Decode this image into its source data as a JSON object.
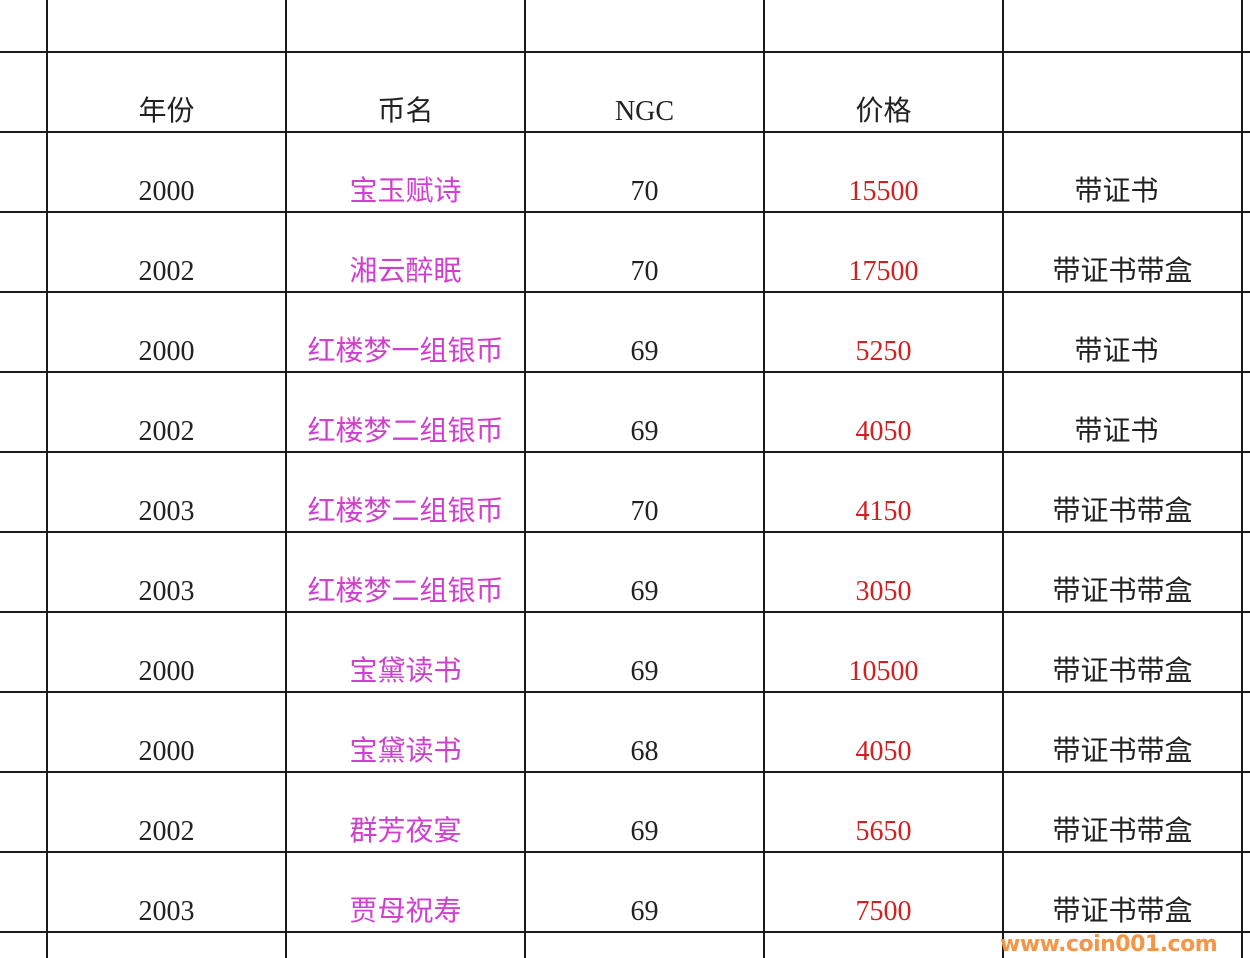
{
  "headers": [
    "年份",
    "币名",
    "NGC",
    "价格",
    ""
  ],
  "rows": [
    {
      "year": "2000",
      "name": "宝玉赋诗",
      "ngc": "70",
      "price": "15500",
      "note": "带证书"
    },
    {
      "year": "2002",
      "name": "湘云醉眠",
      "ngc": "70",
      "price": "17500",
      "note": "带证书带盒"
    },
    {
      "year": "2000",
      "name": "红楼梦一组银币",
      "ngc": "69",
      "price": "5250",
      "note": "带证书"
    },
    {
      "year": "2002",
      "name": "红楼梦二组银币",
      "ngc": "69",
      "price": "4050",
      "note": "带证书"
    },
    {
      "year": "2003",
      "name": "红楼梦二组银币",
      "ngc": "70",
      "price": "4150",
      "note": "带证书带盒"
    },
    {
      "year": "2003",
      "name": "红楼梦二组银币",
      "ngc": "69",
      "price": "3050",
      "note": "带证书带盒"
    },
    {
      "year": "2000",
      "name": "宝黛读书",
      "ngc": "69",
      "price": "10500",
      "note": "带证书带盒"
    },
    {
      "year": "2000",
      "name": "宝黛读书",
      "ngc": "68",
      "price": "4050",
      "note": "带证书带盒"
    },
    {
      "year": "2002",
      "name": "群芳夜宴",
      "ngc": "69",
      "price": "5650",
      "note": "带证书带盒"
    },
    {
      "year": "2003",
      "name": "贾母祝寿",
      "ngc": "69",
      "price": "7500",
      "note": "带证书带盒"
    }
  ],
  "colors": {
    "name": "#d040d0",
    "price": "#d02020",
    "text": "#222222",
    "watermark": "#f59646"
  },
  "watermark": "www.coin001.com"
}
